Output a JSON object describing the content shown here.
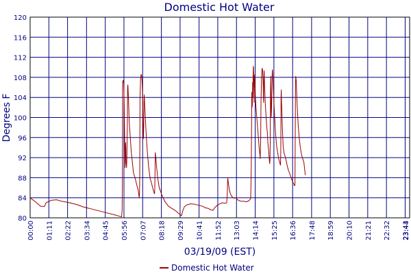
{
  "chart_data": {
    "type": "line",
    "title": "Domestic Hot Water",
    "xlabel": "03/19/09 (EST)",
    "ylabel": "Degrees F",
    "ylim": [
      80,
      120
    ],
    "yticks": [
      "80",
      "84",
      "88",
      "92",
      "96",
      "100",
      "104",
      "108",
      "112",
      "116",
      "120"
    ],
    "xticks": [
      "00:00",
      "01:11",
      "02:22",
      "03:34",
      "04:45",
      "05:56",
      "07:07",
      "08:18",
      "09:29",
      "10:41",
      "11:52",
      "13:03",
      "14:14",
      "15:25",
      "16:36",
      "17:48",
      "18:59",
      "20:10",
      "21:21",
      "22:32",
      "23:43",
      "23:44"
    ],
    "grid": true,
    "legend": "bottom",
    "color": "#990000",
    "series": [
      {
        "name": "Domestic Hot Water",
        "points": [
          [
            0,
            84.0
          ],
          [
            20,
            83.2
          ],
          [
            40,
            82.3
          ],
          [
            55,
            82.3
          ],
          [
            60,
            83.0
          ],
          [
            80,
            83.5
          ],
          [
            100,
            83.6
          ],
          [
            120,
            83.3
          ],
          [
            150,
            83.0
          ],
          [
            180,
            82.6
          ],
          [
            200,
            82.2
          ],
          [
            230,
            81.8
          ],
          [
            260,
            81.4
          ],
          [
            290,
            81.0
          ],
          [
            320,
            80.6
          ],
          [
            340,
            80.3
          ],
          [
            347,
            80.2
          ],
          [
            349,
            81.5
          ],
          [
            350,
            87.0
          ],
          [
            351,
            107.0
          ],
          [
            353,
            107.4
          ],
          [
            355,
            106.8
          ],
          [
            357,
            103.0
          ],
          [
            359,
            95.0
          ],
          [
            360,
            90.0
          ],
          [
            361,
            92.0
          ],
          [
            362,
            95.0
          ],
          [
            363,
            94.0
          ],
          [
            364,
            91.0
          ],
          [
            366,
            90.0
          ],
          [
            367,
            92.0
          ],
          [
            369,
            100.0
          ],
          [
            370,
            106.0
          ],
          [
            371,
            106.5
          ],
          [
            373,
            104.0
          ],
          [
            376,
            99.0
          ],
          [
            380,
            96.0
          ],
          [
            384,
            93.0
          ],
          [
            388,
            91.0
          ],
          [
            392,
            89.0
          ],
          [
            398,
            88.0
          ],
          [
            405,
            86.5
          ],
          [
            410,
            85.5
          ],
          [
            414,
            84.0
          ],
          [
            415,
            85.0
          ],
          [
            416,
            88.0
          ],
          [
            417,
            104.0
          ],
          [
            419,
            107.6
          ],
          [
            421,
            108.6
          ],
          [
            423,
            108.3
          ],
          [
            425,
            107.0
          ],
          [
            427,
            104.0
          ],
          [
            428,
            100.0
          ],
          [
            429,
            97.0
          ],
          [
            430,
            95.8
          ],
          [
            431,
            98.0
          ],
          [
            432,
            103.0
          ],
          [
            433,
            104.5
          ],
          [
            435,
            102.0
          ],
          [
            438,
            99.0
          ],
          [
            441,
            96.0
          ],
          [
            445,
            93.0
          ],
          [
            450,
            90.0
          ],
          [
            455,
            88.0
          ],
          [
            460,
            87.0
          ],
          [
            465,
            86.0
          ],
          [
            470,
            85.0
          ],
          [
            472,
            84.8
          ],
          [
            473,
            86.0
          ],
          [
            474,
            90.0
          ],
          [
            475,
            93.0
          ],
          [
            477,
            92.0
          ],
          [
            480,
            90.0
          ],
          [
            484,
            88.0
          ],
          [
            490,
            86.0
          ],
          [
            500,
            84.5
          ],
          [
            512,
            83.2
          ],
          [
            525,
            82.3
          ],
          [
            540,
            81.8
          ],
          [
            555,
            81.3
          ],
          [
            565,
            80.8
          ],
          [
            570,
            80.6
          ],
          [
            574,
            80.4
          ],
          [
            577,
            81.0
          ],
          [
            580,
            81.5
          ],
          [
            585,
            82.2
          ],
          [
            595,
            82.6
          ],
          [
            610,
            82.8
          ],
          [
            625,
            82.7
          ],
          [
            640,
            82.5
          ],
          [
            655,
            82.3
          ],
          [
            665,
            82.0
          ],
          [
            675,
            81.9
          ],
          [
            685,
            81.6
          ],
          [
            694,
            81.5
          ],
          [
            700,
            82.0
          ],
          [
            710,
            82.5
          ],
          [
            720,
            82.8
          ],
          [
            730,
            83.0
          ],
          [
            740,
            82.9
          ],
          [
            746,
            83.0
          ],
          [
            748,
            85.0
          ],
          [
            750,
            88.0
          ],
          [
            752,
            87.0
          ],
          [
            756,
            85.5
          ],
          [
            760,
            84.8
          ],
          [
            765,
            84.3
          ],
          [
            770,
            84.0
          ],
          [
            775,
            83.9
          ],
          [
            780,
            84.0
          ],
          [
            790,
            83.5
          ],
          [
            800,
            83.3
          ],
          [
            810,
            83.3
          ],
          [
            820,
            83.2
          ],
          [
            830,
            83.4
          ],
          [
            835,
            83.7
          ],
          [
            837,
            83.9
          ],
          [
            839,
            90.0
          ],
          [
            840,
            97.0
          ],
          [
            841,
            105.0
          ],
          [
            842,
            102.0
          ],
          [
            843,
            102.5
          ],
          [
            844,
            107.0
          ],
          [
            845,
            104.0
          ],
          [
            846,
            108.5
          ],
          [
            847,
            110.2
          ],
          [
            848,
            110.0
          ],
          [
            849,
            106.0
          ],
          [
            850,
            103.0
          ],
          [
            851,
            107.0
          ],
          [
            852,
            108.5
          ],
          [
            853,
            107.0
          ],
          [
            855,
            104.0
          ],
          [
            857,
            102.0
          ],
          [
            860,
            100.0
          ],
          [
            863,
            98.0
          ],
          [
            866,
            96.0
          ],
          [
            869,
            94.0
          ],
          [
            872,
            92.5
          ],
          [
            873,
            91.8
          ],
          [
            875,
            96.0
          ],
          [
            876,
            103.0
          ],
          [
            878,
            108.0
          ],
          [
            880,
            109.8
          ],
          [
            882,
            109.5
          ],
          [
            884,
            107.0
          ],
          [
            885,
            104.0
          ],
          [
            886,
            103.0
          ],
          [
            887,
            108.0
          ],
          [
            888,
            109.3
          ],
          [
            890,
            106.0
          ],
          [
            892,
            103.0
          ],
          [
            895,
            100.5
          ],
          [
            898,
            98.0
          ],
          [
            900,
            97.0
          ],
          [
            902,
            95.0
          ],
          [
            904,
            94.0
          ],
          [
            907,
            92.0
          ],
          [
            909,
            90.8
          ],
          [
            910,
            91.5
          ],
          [
            911,
            95.0
          ],
          [
            912,
            105.0
          ],
          [
            913,
            108.2
          ],
          [
            914,
            104.0
          ],
          [
            915,
            100.0
          ],
          [
            916,
            101.5
          ],
          [
            917,
            104.0
          ],
          [
            918,
            108.0
          ],
          [
            919,
            109.5
          ],
          [
            920,
            109.3
          ],
          [
            922,
            107.0
          ],
          [
            925,
            103.0
          ],
          [
            928,
            100.0
          ],
          [
            931,
            97.0
          ],
          [
            935,
            94.5
          ],
          [
            939,
            93.0
          ],
          [
            943,
            91.8
          ],
          [
            947,
            91.0
          ],
          [
            950,
            90.5
          ],
          [
            951,
            93.0
          ],
          [
            952,
            104.0
          ],
          [
            953,
            105.5
          ],
          [
            954,
            103.0
          ],
          [
            955,
            101.5
          ],
          [
            957,
            98.0
          ],
          [
            960,
            94.5
          ],
          [
            963,
            93.0
          ],
          [
            966,
            92.5
          ],
          [
            970,
            91.8
          ],
          [
            975,
            90.5
          ],
          [
            980,
            89.5
          ],
          [
            985,
            88.8
          ],
          [
            990,
            88.0
          ],
          [
            995,
            87.3
          ],
          [
            1000,
            86.8
          ],
          [
            1003,
            86.4
          ],
          [
            1005,
            86.5
          ],
          [
            1006,
            96.0
          ],
          [
            1007,
            107.0
          ],
          [
            1008,
            108.2
          ],
          [
            1010,
            107.0
          ],
          [
            1012,
            104.0
          ],
          [
            1015,
            100.5
          ],
          [
            1018,
            98.0
          ],
          [
            1021,
            96.0
          ],
          [
            1024,
            94.5
          ],
          [
            1027,
            93.5
          ],
          [
            1030,
            92.5
          ],
          [
            1033,
            92.0
          ],
          [
            1036,
            91.5
          ],
          [
            1039,
            91.0
          ],
          [
            1041,
            90.0
          ],
          [
            1043,
            89.0
          ],
          [
            1044,
            88.5
          ]
        ]
      }
    ]
  }
}
